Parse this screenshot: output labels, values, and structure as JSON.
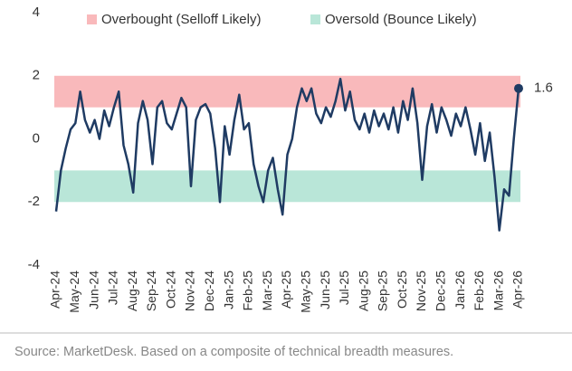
{
  "chart_data": {
    "type": "line",
    "categories": [
      "Apr-24",
      null,
      null,
      null,
      "May-24",
      null,
      null,
      null,
      "Jun-24",
      null,
      null,
      null,
      "Jul-24",
      null,
      null,
      null,
      "Aug-24",
      null,
      null,
      null,
      "Sep-24",
      null,
      null,
      null,
      "Oct-24",
      null,
      null,
      null,
      "Nov-24",
      null,
      null,
      null,
      "Dec-24",
      null,
      null,
      null,
      "Jan-25",
      null,
      null,
      null,
      "Feb-25",
      null,
      null,
      null,
      "Mar-25",
      null,
      null,
      null,
      "Apr-25",
      null,
      null,
      null,
      "May-25",
      null,
      null,
      null,
      "Jun-25",
      null,
      null,
      null,
      "Jul-25",
      null,
      null,
      null,
      "Aug-25",
      null,
      null,
      null,
      "Sep-25",
      null,
      null,
      null,
      "Oct-25",
      null,
      null,
      null,
      "Nov-25",
      null,
      null,
      null,
      "Dec-25",
      null,
      null,
      null,
      "Jan-26",
      null,
      null,
      null,
      "Feb-26",
      null,
      null,
      null,
      "Mar-26",
      null,
      null,
      null,
      "Apr-26"
    ],
    "values": [
      -2.3,
      -1.0,
      -0.3,
      0.3,
      0.5,
      1.5,
      0.6,
      0.2,
      0.6,
      0.0,
      0.9,
      0.4,
      1.0,
      1.5,
      -0.2,
      -0.8,
      -1.7,
      0.5,
      1.2,
      0.6,
      -0.8,
      1.0,
      1.2,
      0.5,
      0.3,
      0.8,
      1.3,
      1.0,
      -1.5,
      0.6,
      1.0,
      1.1,
      0.8,
      -0.3,
      -2.0,
      0.4,
      -0.5,
      0.6,
      1.4,
      0.3,
      0.5,
      -0.8,
      -1.5,
      -2.0,
      -1.0,
      -0.6,
      -1.6,
      -2.4,
      -0.5,
      0.0,
      1.0,
      1.6,
      1.2,
      1.6,
      0.8,
      0.5,
      1.0,
      0.7,
      1.2,
      1.9,
      0.9,
      1.5,
      0.6,
      0.3,
      0.8,
      0.2,
      0.9,
      0.4,
      0.8,
      0.3,
      1.0,
      0.2,
      1.2,
      0.6,
      1.6,
      0.5,
      -1.3,
      0.4,
      1.1,
      0.2,
      1.0,
      0.6,
      0.1,
      0.8,
      0.4,
      1.0,
      0.3,
      -0.5,
      0.5,
      -0.7,
      0.2,
      -1.2,
      -2.9,
      -1.6,
      -1.8,
      0.0,
      1.6
    ],
    "color": "#1f3b63",
    "ylim": [
      -4,
      4
    ],
    "yticks": [
      -4,
      -2,
      0,
      2,
      4
    ],
    "bands": [
      {
        "name": "Overbought (Selloff Likely)",
        "from": 1,
        "to": 2,
        "color": "#f9b9bb"
      },
      {
        "name": "Oversold (Bounce Likely)",
        "from": -2,
        "to": -1,
        "color": "#b9e6d8"
      }
    ],
    "note": "Source: MarketDesk. Based on a composite of technical breadth measures."
  }
}
